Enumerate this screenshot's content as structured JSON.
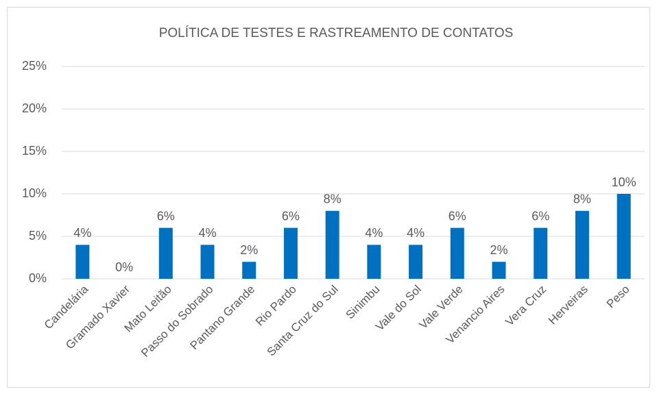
{
  "chart_data": {
    "type": "bar",
    "title": "POLÍTICA DE TESTES E RASTREAMENTO DE CONTATOS",
    "categories": [
      "Candelária",
      "Gramado Xavier",
      "Mato Leitão",
      "Passo do Sobrado",
      "Pantano Grande",
      "Rio Pardo",
      "Santa Cruz do Sul",
      "Sinimbu",
      "Vale do Sol",
      "Vale Verde",
      "Venancio Aires",
      "Vera Cruz",
      "Herveiras",
      "Peso"
    ],
    "values": [
      4,
      0,
      6,
      4,
      2,
      6,
      8,
      4,
      4,
      6,
      2,
      6,
      8,
      10
    ],
    "value_labels": [
      "4%",
      "0%",
      "6%",
      "4%",
      "2%",
      "6%",
      "8%",
      "4%",
      "4%",
      "6%",
      "2%",
      "6%",
      "8%",
      "10%"
    ],
    "color": "#0070c0",
    "ylim": [
      0,
      25
    ],
    "yticks": [
      {
        "value": 0,
        "label": "0%"
      },
      {
        "value": 5,
        "label": "5%"
      },
      {
        "value": 10,
        "label": "10%"
      },
      {
        "value": 15,
        "label": "15%"
      },
      {
        "value": 20,
        "label": "20%"
      },
      {
        "value": 25,
        "label": "25%"
      }
    ],
    "grid": true
  }
}
